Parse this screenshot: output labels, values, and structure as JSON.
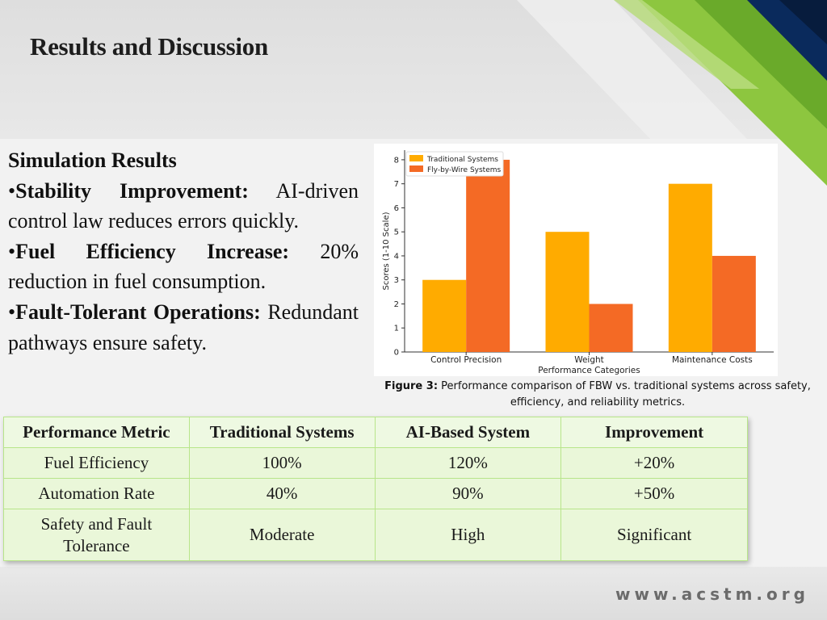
{
  "slide": {
    "title": "Results and Discussion",
    "footer_url": "www.acstm.org",
    "accent_colors": [
      "#8dc63f",
      "#6aaa2a",
      "#0a2a5c"
    ]
  },
  "simulation": {
    "heading": "Simulation Results",
    "bullets": [
      {
        "label": "Stability Improvement:",
        "text": "AI-driven control law reduces errors quickly."
      },
      {
        "label": "Fuel Efficiency Increase:",
        "text": "20% reduction in fuel consumption."
      },
      {
        "label": "Fault-Tolerant Operations:",
        "text": "Redundant pathways ensure safety."
      }
    ]
  },
  "figure": {
    "caption_label": "Figure 3:",
    "caption_text": "Performance comparison of FBW vs. traditional systems across safety, efficiency, and reliability metrics."
  },
  "chart_data": {
    "type": "bar",
    "categories": [
      "Control Precision",
      "Weight",
      "Maintenance Costs"
    ],
    "series": [
      {
        "name": "Traditional Systems",
        "values": [
          3,
          5,
          7
        ],
        "color": "#ffab00"
      },
      {
        "name": "Fly-by-Wire Systems",
        "values": [
          8,
          2,
          4
        ],
        "color": "#f46a25"
      }
    ],
    "xlabel": "Performance Categories",
    "ylabel": "Scores (1-10 Scale)",
    "ylim": [
      0,
      8.4
    ],
    "yticks": [
      0,
      1,
      2,
      3,
      4,
      5,
      6,
      7,
      8
    ],
    "legend_position": "top-left",
    "grid": false
  },
  "table": {
    "headers": [
      "Performance Metric",
      "Traditional Systems",
      "AI-Based System",
      "Improvement"
    ],
    "rows": [
      [
        "Fuel Efficiency",
        "100%",
        "120%",
        "+20%"
      ],
      [
        "Automation Rate",
        "40%",
        "90%",
        "+50%"
      ],
      [
        "Safety and Fault Tolerance",
        "Moderate",
        "High",
        "Significant"
      ]
    ]
  }
}
